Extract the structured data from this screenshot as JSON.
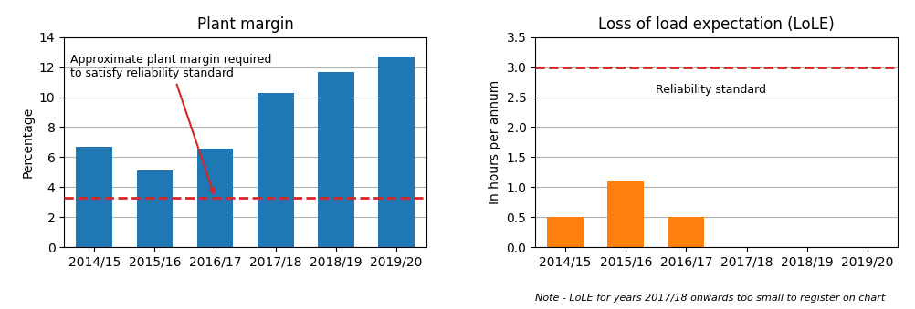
{
  "chart_data": [
    {
      "type": "bar",
      "title": "Plant margin",
      "categories": [
        "2014/15",
        "2015/16",
        "2016/17",
        "2017/18",
        "2018/19",
        "2019/20"
      ],
      "values": [
        6.7,
        5.1,
        6.6,
        10.3,
        11.7,
        12.7
      ],
      "ylabel": "Percentage",
      "ylim": [
        0,
        14
      ],
      "yticks": [
        0,
        2,
        4,
        6,
        8,
        10,
        12,
        14
      ],
      "grid": "y",
      "reference_line": {
        "value": 3.3,
        "label": "Approximate plant margin required\nto satisfy reliability standard"
      }
    },
    {
      "type": "bar",
      "title": "Loss of load expectation (LoLE)",
      "categories": [
        "2014/15",
        "2015/16",
        "2016/17",
        "2017/18",
        "2018/19",
        "2019/20"
      ],
      "values": [
        0.5,
        1.1,
        0.5,
        0,
        0,
        0
      ],
      "ylabel": "In hours per annum",
      "ylim": [
        0,
        3.5
      ],
      "yticks": [
        {
          "value": 0,
          "label": "0.0"
        },
        0.5,
        {
          "value": 1.0,
          "label": "1.0"
        },
        1.5,
        {
          "value": 2.0,
          "label": "2.0"
        },
        2.5,
        {
          "value": 3.0,
          "label": "3.0"
        },
        3.5
      ],
      "grid": "y",
      "reference_line": {
        "value": 3.0,
        "label": "Reliability standard"
      },
      "note": "Note - LoLE for years 2017/18 onwards too small to register on chart"
    }
  ]
}
